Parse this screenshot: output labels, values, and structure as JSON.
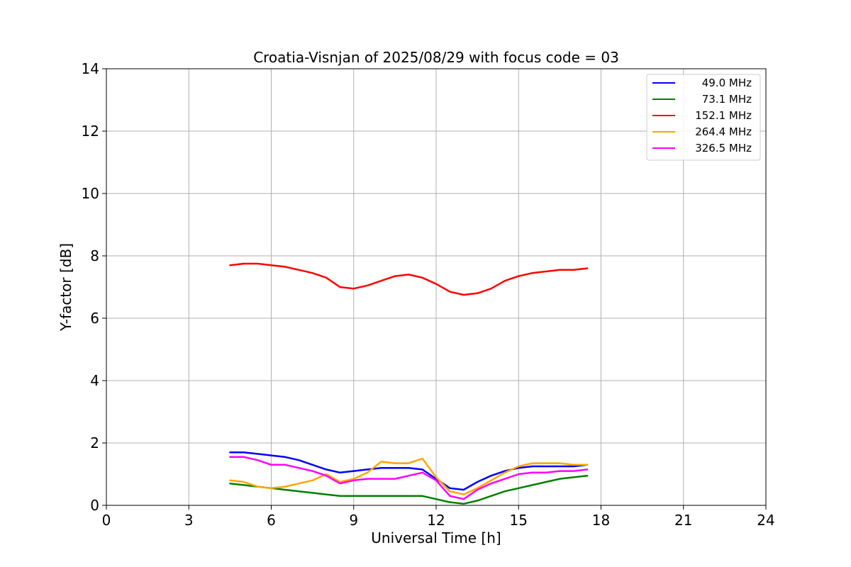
{
  "chart_data": {
    "type": "line",
    "title": "Croatia-Visnjan of 2025/08/29 with focus code = 03",
    "xlabel": "Universal Time [h]",
    "ylabel": "Y-factor [dB]",
    "xlim": [
      0,
      24
    ],
    "ylim": [
      0,
      14
    ],
    "xticks": [
      0,
      3,
      6,
      9,
      12,
      15,
      18,
      21,
      24
    ],
    "yticks": [
      0,
      2,
      4,
      6,
      8,
      10,
      12,
      14
    ],
    "grid": true,
    "legend_position": "top-right",
    "series": [
      {
        "name": "49.0 MHz",
        "color": "#0000ff",
        "x": [
          4.5,
          5.0,
          5.5,
          6.0,
          6.5,
          7.0,
          7.5,
          8.0,
          8.5,
          9.0,
          9.5,
          10.0,
          10.5,
          11.0,
          11.5,
          12.0,
          12.5,
          13.0,
          13.5,
          14.0,
          14.5,
          15.0,
          15.5,
          16.0,
          16.5,
          17.0,
          17.5
        ],
        "y": [
          1.7,
          1.7,
          1.65,
          1.6,
          1.55,
          1.45,
          1.3,
          1.15,
          1.05,
          1.1,
          1.15,
          1.2,
          1.2,
          1.2,
          1.15,
          0.85,
          0.55,
          0.5,
          0.75,
          0.95,
          1.1,
          1.2,
          1.25,
          1.25,
          1.25,
          1.25,
          1.3
        ]
      },
      {
        "name": "73.1 MHz",
        "color": "#008000",
        "x": [
          4.5,
          5.0,
          5.5,
          6.0,
          6.5,
          7.0,
          7.5,
          8.0,
          8.5,
          9.0,
          9.5,
          10.0,
          10.5,
          11.0,
          11.5,
          12.0,
          12.5,
          13.0,
          13.5,
          14.0,
          14.5,
          15.0,
          15.5,
          16.0,
          16.5,
          17.0,
          17.5
        ],
        "y": [
          0.7,
          0.65,
          0.6,
          0.55,
          0.5,
          0.45,
          0.4,
          0.35,
          0.3,
          0.3,
          0.3,
          0.3,
          0.3,
          0.3,
          0.3,
          0.2,
          0.1,
          0.05,
          0.15,
          0.3,
          0.45,
          0.55,
          0.65,
          0.75,
          0.85,
          0.9,
          0.95
        ]
      },
      {
        "name": "152.1 MHz",
        "color": "#ff0000",
        "x": [
          4.5,
          5.0,
          5.5,
          6.0,
          6.5,
          7.0,
          7.5,
          8.0,
          8.5,
          9.0,
          9.5,
          10.0,
          10.5,
          11.0,
          11.5,
          12.0,
          12.5,
          13.0,
          13.5,
          14.0,
          14.5,
          15.0,
          15.5,
          16.0,
          16.5,
          17.0,
          17.5
        ],
        "y": [
          7.7,
          7.75,
          7.75,
          7.7,
          7.65,
          7.55,
          7.45,
          7.3,
          7.0,
          6.95,
          7.05,
          7.2,
          7.35,
          7.4,
          7.3,
          7.1,
          6.85,
          6.75,
          6.8,
          6.95,
          7.2,
          7.35,
          7.45,
          7.5,
          7.55,
          7.55,
          7.6
        ]
      },
      {
        "name": "264.4 MHz",
        "color": "#ffa500",
        "x": [
          4.5,
          5.0,
          5.5,
          6.0,
          6.5,
          7.0,
          7.5,
          8.0,
          8.5,
          9.0,
          9.5,
          10.0,
          10.5,
          11.0,
          11.5,
          12.0,
          12.5,
          13.0,
          13.5,
          14.0,
          14.5,
          15.0,
          15.5,
          16.0,
          16.5,
          17.0,
          17.5
        ],
        "y": [
          0.8,
          0.75,
          0.6,
          0.55,
          0.6,
          0.7,
          0.8,
          1.0,
          0.75,
          0.85,
          1.05,
          1.4,
          1.35,
          1.35,
          1.5,
          0.9,
          0.45,
          0.35,
          0.55,
          0.8,
          1.05,
          1.25,
          1.35,
          1.35,
          1.35,
          1.3,
          1.3
        ]
      },
      {
        "name": "326.5 MHz",
        "color": "#ff00ff",
        "x": [
          4.5,
          5.0,
          5.5,
          6.0,
          6.5,
          7.0,
          7.5,
          8.0,
          8.5,
          9.0,
          9.5,
          10.0,
          10.5,
          11.0,
          11.5,
          12.0,
          12.5,
          13.0,
          13.5,
          14.0,
          14.5,
          15.0,
          15.5,
          16.0,
          16.5,
          17.0,
          17.5
        ],
        "y": [
          1.55,
          1.55,
          1.45,
          1.3,
          1.3,
          1.2,
          1.1,
          0.95,
          0.7,
          0.8,
          0.85,
          0.85,
          0.85,
          0.95,
          1.05,
          0.8,
          0.3,
          0.2,
          0.5,
          0.7,
          0.85,
          1.0,
          1.05,
          1.05,
          1.1,
          1.1,
          1.15
        ]
      }
    ],
    "annotations": []
  }
}
